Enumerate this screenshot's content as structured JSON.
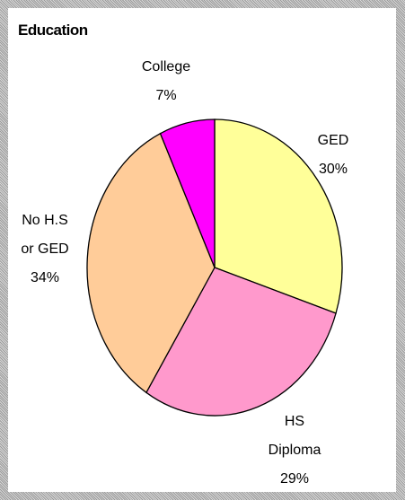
{
  "chart_data": {
    "type": "pie",
    "title": "Education",
    "categories": [
      "GED",
      "HS Diploma",
      "No H.S or GED",
      "College"
    ],
    "values": [
      30,
      29,
      34,
      7
    ],
    "value_labels": [
      "30%",
      "29%",
      "34%",
      "7%"
    ],
    "colors": [
      "#ffff99",
      "#ff99cc",
      "#ffcc99",
      "#ff00ff"
    ]
  }
}
